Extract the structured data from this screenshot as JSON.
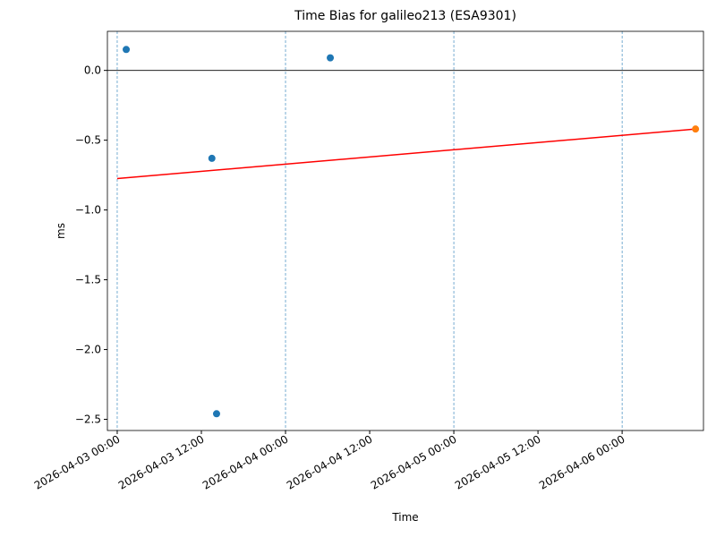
{
  "chart_data": {
    "type": "scatter",
    "title": "Time Bias for galileo213 (ESA9301)",
    "xlabel": "Time",
    "ylabel": "ms",
    "series": [
      {
        "type": "scatter",
        "color": "#1f77b4",
        "x": [
          "2026-04-03 01:17",
          "2026-04-03 13:30",
          "2026-04-03 14:10",
          "2026-04-04 06:23"
        ],
        "values": [
          0.15,
          -0.63,
          -2.46,
          0.09
        ]
      },
      {
        "type": "scatter",
        "color": "#ff7f0e",
        "x": [
          "2026-04-06 10:28"
        ],
        "values": [
          -0.42
        ]
      },
      {
        "type": "line",
        "color": "#ff0000",
        "x": [
          "2026-04-03 00:00",
          "2026-04-06 10:28"
        ],
        "values": [
          -0.775,
          -0.42
        ]
      }
    ],
    "vlines": [
      "2026-04-03 00:00",
      "2026-04-04 00:00",
      "2026-04-05 00:00",
      "2026-04-06 00:00"
    ],
    "vline_color": "#1f77b4",
    "hline": 0,
    "xlim": [
      "2026-04-02 22:36",
      "2026-04-06 11:36"
    ],
    "ylim": [
      -2.58,
      0.28
    ],
    "xticks": [
      "2026-04-03 00:00",
      "2026-04-03 12:00",
      "2026-04-04 00:00",
      "2026-04-04 12:00",
      "2026-04-05 00:00",
      "2026-04-05 12:00",
      "2026-04-06 00:00"
    ],
    "yticks": [
      {
        "value": 0,
        "label": "0.0"
      },
      {
        "value": -0.5,
        "label": "−0.5"
      },
      {
        "value": -1,
        "label": "−1.0"
      },
      {
        "value": -1.5,
        "label": "−1.5"
      },
      {
        "value": -2,
        "label": "−2.0"
      },
      {
        "value": -2.5,
        "label": "−2.5"
      }
    ]
  }
}
